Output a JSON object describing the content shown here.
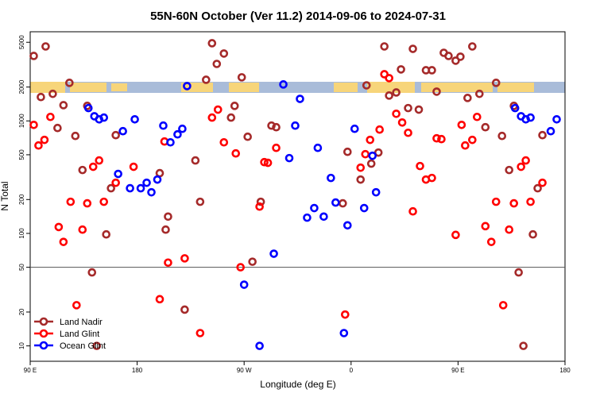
{
  "chart_data": {
    "type": "scatter",
    "title": "55N-60N October (Ver 11.2)   2014-09-06 to 2024-07-31",
    "xlabel": "Longitude (deg E)",
    "ylabel": "N Total",
    "xlim": [
      90,
      540
    ],
    "ylim": [
      7.3,
      6200
    ],
    "log_y": true,
    "xticks": [
      {
        "value": 90,
        "label": "90 E"
      },
      180,
      {
        "value": 270,
        "label": "90 W"
      },
      {
        "value": 360,
        "label": "0"
      },
      {
        "value": 450,
        "label": "90 E"
      },
      {
        "value": 540,
        "label": "180"
      }
    ],
    "yticks": [
      10,
      20,
      50,
      100,
      200,
      500,
      1000,
      2000,
      5000
    ],
    "hline": 50,
    "legend": "lower left",
    "series": [
      {
        "name": "Land Nadir",
        "color": "#a52a2a",
        "x": [
          93,
          103,
          99,
          109,
          123,
          113,
          118,
          128,
          134,
          138,
          142,
          146,
          154,
          158,
          162,
          199,
          204,
          206,
          220,
          229,
          233,
          238,
          243,
          247,
          253,
          259,
          262,
          268,
          273,
          277,
          284,
          293,
          297,
          353,
          357,
          368,
          373,
          377,
          383,
          388,
          392,
          398,
          402,
          408,
          412,
          417,
          423,
          428,
          432,
          438,
          442,
          448,
          452,
          458,
          462,
          468,
          473,
          482,
          487,
          493,
          497,
          501,
          505,
          513,
          517,
          521
        ],
        "values": [
          3780,
          4590,
          1630,
          1740,
          2180,
          865,
          1380,
          735,
          366,
          1360,
          45,
          10,
          98,
          252,
          747,
          343,
          108,
          141,
          21,
          445,
          191,
          2320,
          4900,
          3210,
          3970,
          1070,
          1360,
          2440,
          723,
          56,
          191,
          908,
          879,
          185,
          531,
          301,
          2070,
          417,
          523,
          4590,
          1680,
          1790,
          2870,
          1300,
          4370,
          1260,
          2820,
          2820,
          1820,
          4030,
          3780,
          3430,
          3720,
          1600,
          4590,
          1740,
          879,
          2180,
          735,
          366,
          1360,
          45,
          10,
          98,
          252,
          747
        ]
      },
      {
        "name": "Land Glint",
        "color": "#ff0000",
        "x": [
          93,
          97,
          102,
          107,
          114,
          118,
          124,
          129,
          134,
          138,
          143,
          148,
          152,
          162,
          177,
          199,
          203,
          206,
          220,
          233,
          243,
          248,
          253,
          263,
          267,
          283,
          287,
          290,
          297,
          355,
          368,
          372,
          376,
          384,
          388,
          392,
          398,
          403,
          408,
          412,
          418,
          423,
          428,
          432,
          436,
          448,
          453,
          456,
          462,
          466,
          473,
          478,
          482,
          488,
          493,
          497,
          503,
          507,
          511,
          521
        ],
        "values": [
          922,
          605,
          678,
          1085,
          114,
          84,
          191,
          23,
          108,
          185,
          391,
          445,
          191,
          282,
          391,
          26,
          656,
          55,
          60,
          13,
          1070,
          1260,
          645,
          514,
          50,
          173,
          430,
          424,
          576,
          19,
          384,
          506,
          678,
          837,
          2600,
          2400,
          1157,
          968,
          784,
          157,
          397,
          301,
          311,
          700,
          689,
          97,
          922,
          605,
          678,
          1085,
          116,
          84,
          191,
          23,
          108,
          185,
          391,
          445,
          191,
          282
        ]
      },
      {
        "name": "Ocean Glint",
        "color": "#0000ff",
        "x": [
          139,
          144,
          148,
          152,
          168,
          164,
          174,
          178,
          183,
          188,
          192,
          197,
          202,
          208,
          214,
          218,
          222,
          270,
          283,
          295,
          303,
          308,
          313,
          317,
          323,
          329,
          332,
          337,
          343,
          347,
          354,
          357,
          363,
          371,
          378,
          381,
          498,
          503,
          507,
          511,
          528,
          533
        ],
        "values": [
          1300,
          1100,
          1033,
          1070,
          810,
          338,
          252,
          1033,
          252,
          282,
          232,
          301,
          908,
          645,
          759,
          851,
          2040,
          35,
          10,
          66,
          2110,
          467,
          908,
          1570,
          138,
          168,
          576,
          141,
          311,
          188,
          13,
          118,
          851,
          168,
          490,
          232,
          1300,
          1100,
          1033,
          1070,
          810,
          1033
        ]
      }
    ]
  }
}
